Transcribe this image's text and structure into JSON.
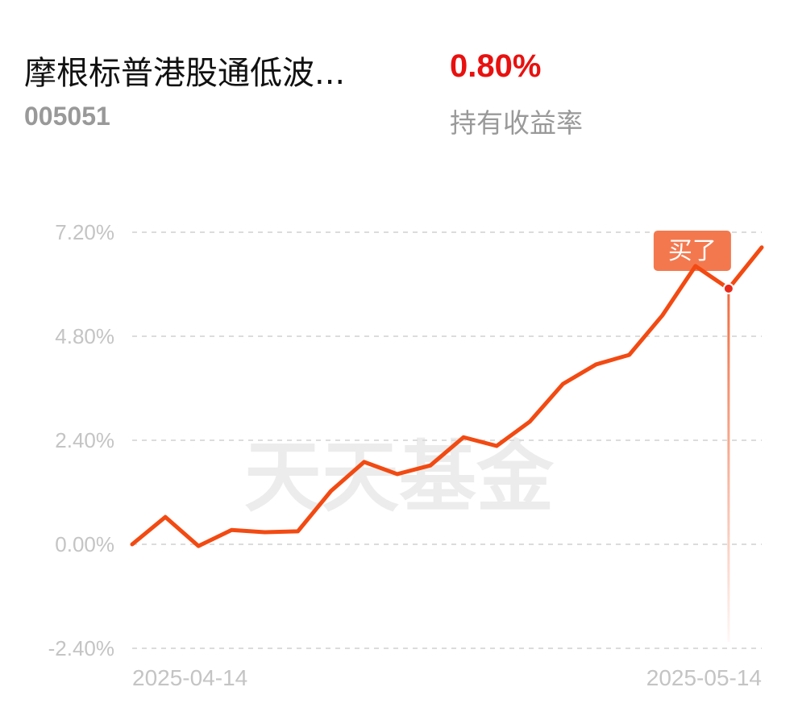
{
  "header": {
    "fund_name": "摩根标普港股通低波...",
    "fund_code": "005051",
    "return_value": "0.80%",
    "return_label": "持有收益率"
  },
  "chart_data": {
    "type": "line",
    "watermark": "天天基金",
    "categories": [
      "2025-04-14",
      null,
      null,
      null,
      null,
      null,
      null,
      null,
      null,
      null,
      null,
      null,
      null,
      null,
      null,
      null,
      null,
      null,
      null,
      "2025-05-14"
    ],
    "series": [
      {
        "color": "#f24a12",
        "values": [
          0.0,
          0.63,
          -0.04,
          0.33,
          0.28,
          0.3,
          1.23,
          1.9,
          1.62,
          1.82,
          2.47,
          2.27,
          2.83,
          3.7,
          4.15,
          4.37,
          5.28,
          6.42,
          5.9,
          6.85
        ]
      }
    ],
    "ylim": [
      -2.4,
      7.2
    ],
    "yticks": [
      {
        "value": -2.4,
        "label": "-2.40%"
      },
      {
        "value": 0,
        "label": "0.00%"
      },
      {
        "value": 2.4,
        "label": "2.40%"
      },
      {
        "value": 4.8,
        "label": "4.80%"
      },
      {
        "value": 7.2,
        "label": "7.20%"
      }
    ],
    "grid": true,
    "annotations": [
      {
        "text": "买了",
        "category_index": 18
      }
    ]
  }
}
